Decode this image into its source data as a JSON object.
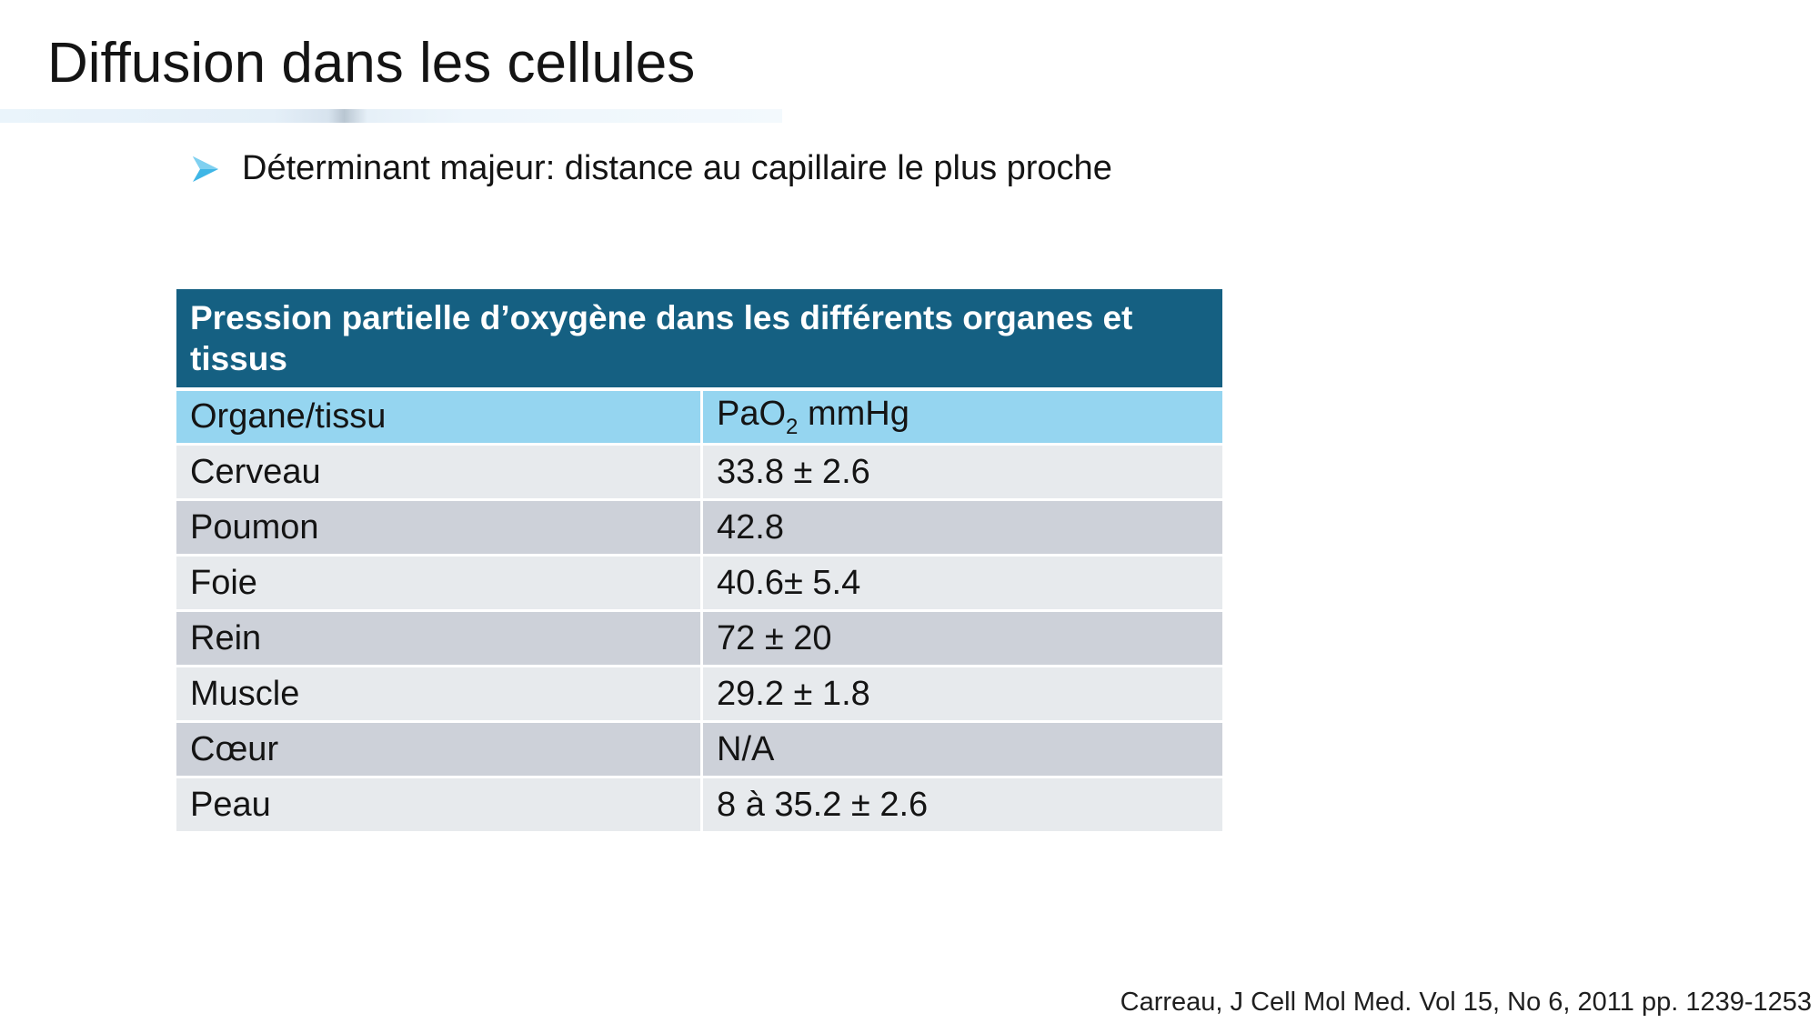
{
  "slide": {
    "title": "Diffusion dans les cellules",
    "bullet": {
      "icon": "arrowhead-bullet-icon",
      "icon_color": "#3fb6e6",
      "text": "Déterminant majeur: distance au capillaire le plus proche"
    }
  },
  "table": {
    "caption": "Pression partielle d’oxygène dans les différents organes et tissus",
    "header": {
      "organ": "Organe/tissu",
      "value_prefix": "PaO",
      "value_subscript": "2",
      "value_suffix": " mmHg"
    },
    "rows": [
      {
        "organ": "Cerveau",
        "value": "33.8 ± 2.6"
      },
      {
        "organ": "Poumon",
        "value": "42.8"
      },
      {
        "organ": "Foie",
        "value": "40.6± 5.4"
      },
      {
        "organ": "Rein",
        "value": "72 ± 20"
      },
      {
        "organ": "Muscle",
        "value": "29.2 ± 1.8"
      },
      {
        "organ": "Cœur",
        "value": "N/A"
      },
      {
        "organ": "Peau",
        "value": "8 à 35.2 ± 2.6"
      }
    ],
    "colors": {
      "caption_bg": "#156082",
      "header_bg": "#95d5f0",
      "row_light": "#e7eaed",
      "row_dark": "#cdd1d9"
    }
  },
  "citation": "Carreau, J Cell Mol Med. Vol 15, No 6, 2011 pp. 1239-1253"
}
